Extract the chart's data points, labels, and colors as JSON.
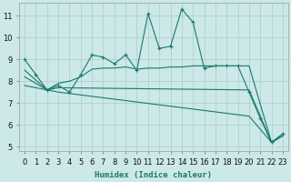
{
  "xlabel": "Humidex (Indice chaleur)",
  "bg_color": "#cce8e8",
  "grid_color": "#aacccc",
  "line_color": "#1a7a6a",
  "xlim_min": -0.5,
  "xlim_max": 23.5,
  "ylim_min": 4.8,
  "ylim_max": 11.6,
  "yticks": [
    5,
    6,
    7,
    8,
    9,
    10,
    11
  ],
  "xticks": [
    0,
    1,
    2,
    3,
    4,
    5,
    6,
    7,
    8,
    9,
    10,
    11,
    12,
    13,
    14,
    15,
    16,
    17,
    18,
    19,
    20,
    21,
    22,
    23
  ],
  "line1_x": [
    0,
    1,
    2,
    3,
    4,
    5,
    6,
    7,
    8,
    9,
    10,
    11,
    12,
    13,
    14,
    15,
    16,
    17,
    18,
    19,
    20,
    21,
    22,
    23
  ],
  "line1_y": [
    9.0,
    8.3,
    7.6,
    7.8,
    7.5,
    8.3,
    9.2,
    9.1,
    8.8,
    9.2,
    8.5,
    11.1,
    9.5,
    9.6,
    11.3,
    10.7,
    8.6,
    8.7,
    8.7,
    8.7,
    7.5,
    6.3,
    5.2,
    5.6
  ],
  "line2_x": [
    0,
    2,
    3,
    4,
    5,
    6,
    7,
    8,
    9,
    10,
    11,
    12,
    13,
    14,
    15,
    16,
    17,
    18,
    19,
    20,
    22,
    23
  ],
  "line2_y": [
    8.5,
    7.6,
    7.9,
    8.0,
    8.2,
    8.55,
    8.6,
    8.6,
    8.65,
    8.55,
    8.6,
    8.6,
    8.65,
    8.65,
    8.7,
    8.7,
    8.7,
    8.7,
    8.7,
    8.7,
    5.2,
    5.5
  ],
  "line3_x": [
    0,
    2,
    3,
    20,
    22,
    23
  ],
  "line3_y": [
    8.2,
    7.6,
    7.7,
    7.6,
    5.2,
    5.5
  ],
  "line4_x": [
    0,
    2,
    3,
    20,
    22,
    23
  ],
  "line4_y": [
    7.8,
    7.6,
    7.5,
    6.4,
    5.2,
    5.5
  ],
  "xlabel_fontsize": 6.5,
  "tick_fontsize": 6.0
}
